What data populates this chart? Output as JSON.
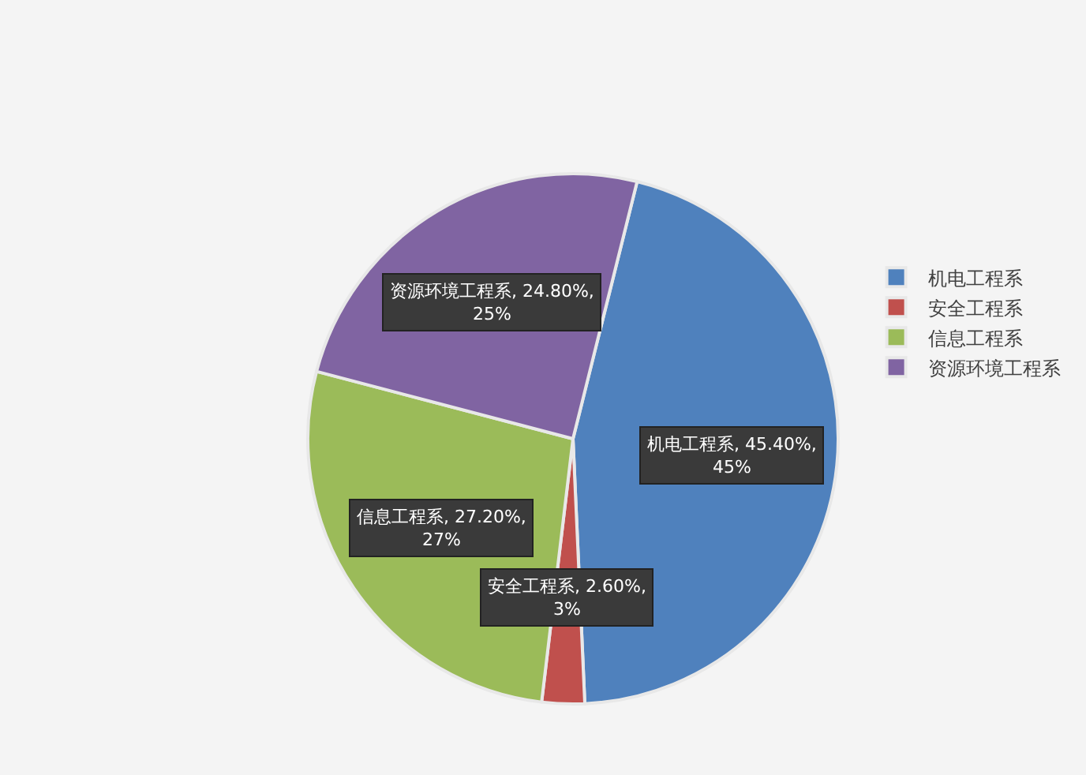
{
  "chart_data": {
    "type": "pie",
    "categories": [
      "机电工程系",
      "安全工程系",
      "信息工程系",
      "资源环境工程系"
    ],
    "values": [
      45.4,
      2.6,
      27.2,
      24.8
    ],
    "colors": [
      "#4f81bd",
      "#c0504d",
      "#9bbb59",
      "#8064a2"
    ],
    "value_labels": [
      "机电工程系, 45.40%, 45%",
      "安全工程系, 2.60%, 3%",
      "信息工程系, 27.20%, 27%",
      "资源环境工程系, 24.80%, 25%"
    ],
    "legend": "right"
  }
}
